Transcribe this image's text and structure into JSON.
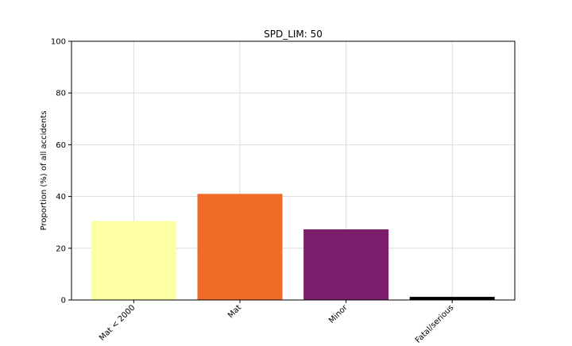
{
  "chart_data": {
    "type": "bar",
    "title": "SPD_LIM: 50",
    "xlabel": "",
    "ylabel": "Proportion (%) of all accidents",
    "categories": [
      "Mat < 2000",
      "Mat",
      "Minor",
      "Fatal/serious"
    ],
    "values": [
      30.5,
      41.0,
      27.3,
      1.2
    ],
    "colors": [
      "#fcffa4",
      "#f06b27",
      "#7b1f6d",
      "#000004"
    ],
    "ylim": [
      0,
      100
    ],
    "yticks": [
      0,
      20,
      40,
      60,
      80,
      100
    ],
    "grid": true,
    "legend": "none"
  }
}
